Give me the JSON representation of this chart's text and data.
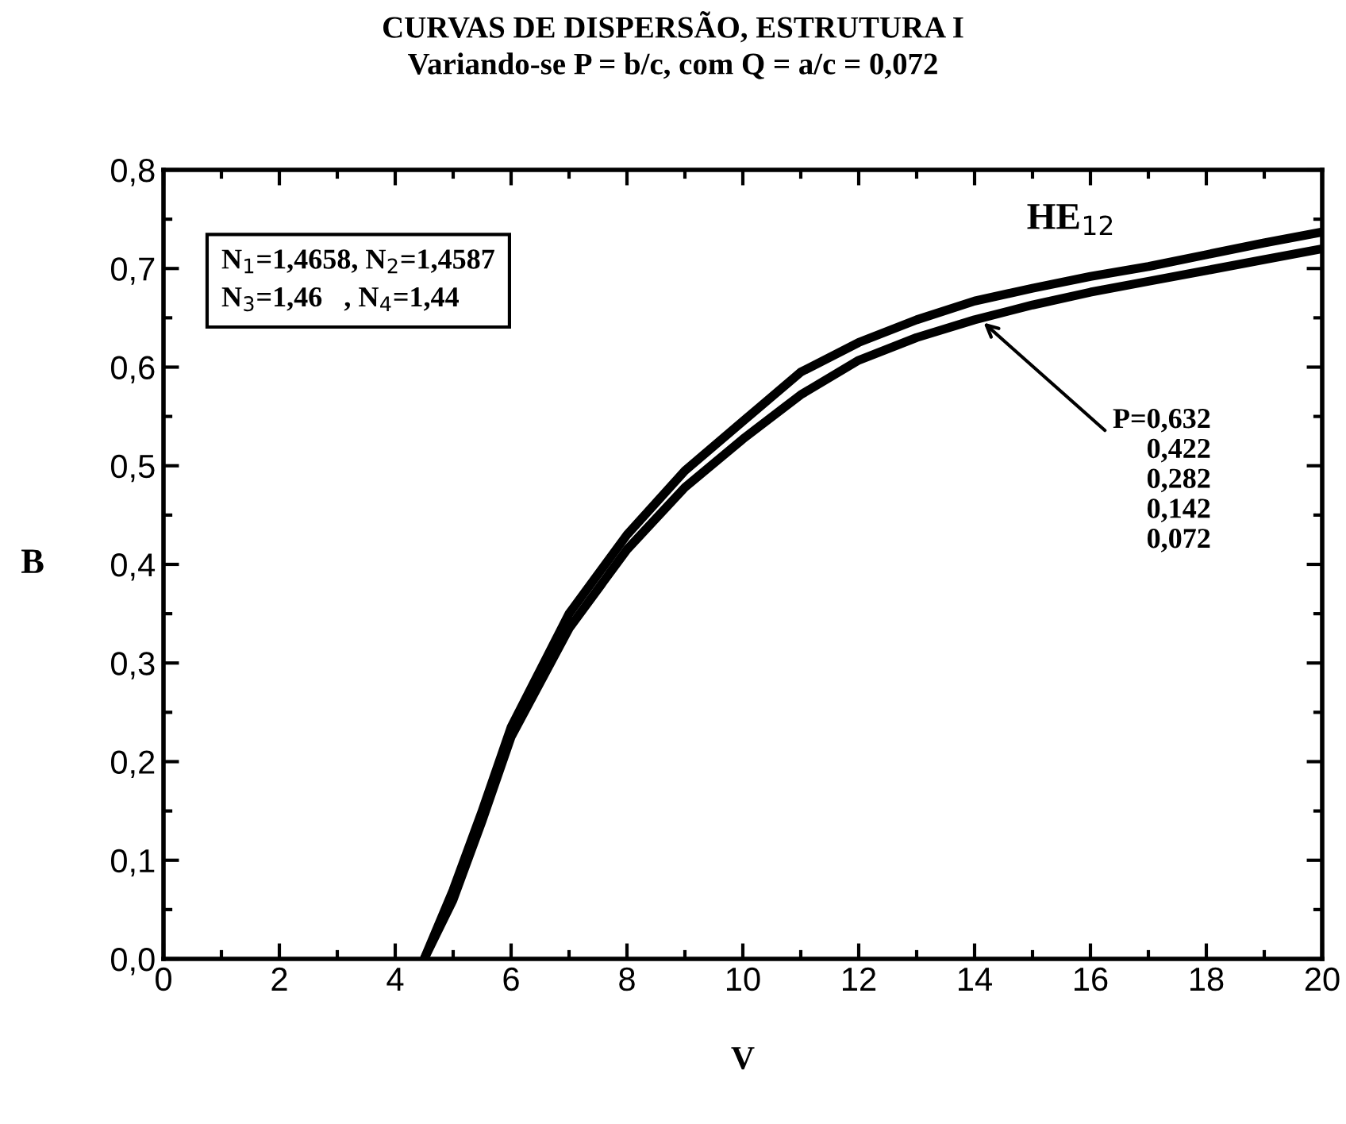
{
  "chart_data": {
    "type": "line",
    "title": "CURVAS DE DISPERSÃO, ESTRUTURA I",
    "subtitle": "Variando-se P = b/c, com Q = a/c = 0,072",
    "xlabel": "V",
    "ylabel": "B",
    "series": [
      {
        "color": "#000000",
        "x": [
          4.5,
          5,
          5.5,
          6,
          7,
          8,
          9,
          10,
          11,
          12,
          13,
          14,
          15,
          16,
          17,
          18,
          19,
          20
        ],
        "values": [
          0,
          0.07,
          0.15,
          0.235,
          0.35,
          0.43,
          0.495,
          0.545,
          0.595,
          0.625,
          0.648,
          0.667,
          0.68,
          0.692,
          0.702,
          0.714,
          0.726,
          0.737
        ]
      },
      {
        "color": "#000000",
        "x": [
          4.5,
          5,
          5.5,
          6,
          7,
          8,
          9,
          10,
          11,
          12,
          13,
          14,
          15,
          16,
          17,
          18,
          19,
          20
        ],
        "values": [
          0,
          0.06,
          0.14,
          0.225,
          0.335,
          0.415,
          0.478,
          0.527,
          0.572,
          0.607,
          0.63,
          0.648,
          0.663,
          0.676,
          0.687,
          0.698,
          0.709,
          0.72
        ]
      }
    ],
    "xlim": [
      0,
      20
    ],
    "ylim": [
      0,
      0.8
    ],
    "xticks": [
      0,
      2,
      4,
      6,
      8,
      10,
      12,
      14,
      16,
      18,
      20
    ],
    "yticks": [
      {
        "value": 0,
        "label": "0,0"
      },
      {
        "value": 0.1,
        "label": "0,1"
      },
      {
        "value": 0.2,
        "label": "0,2"
      },
      {
        "value": 0.3,
        "label": "0,3"
      },
      {
        "value": 0.4,
        "label": "0,4"
      },
      {
        "value": 0.5,
        "label": "0,5"
      },
      {
        "value": 0.6,
        "label": "0,6"
      },
      {
        "value": 0.7,
        "label": "0,7"
      },
      {
        "value": 0.8,
        "label": "0,8"
      }
    ],
    "annotations": [
      "N$_{1}$=1,4658, N$_{2}$=1,4587\nN$_{3}$=1,46   , N$_{4}$=1,44",
      "HE$_{12}$",
      {
        "text": "P=0,632\n0,422\n0,282\n0,142\n0,072",
        "x": 14.1,
        "y": 0.648
      }
    ],
    "grid": false,
    "marker": "none",
    "line_style": "solid"
  }
}
